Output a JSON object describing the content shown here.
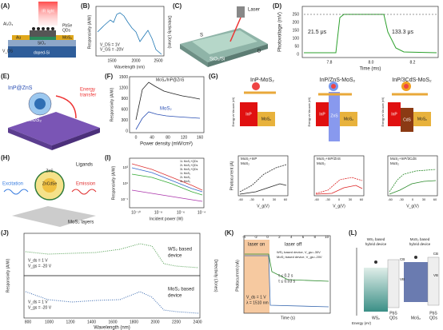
{
  "panels": {
    "A": {
      "label": "(A)",
      "ir": "IR light",
      "al": "Al₂O₃",
      "qd1": "PbSe",
      "qd2": "QDs",
      "mos": "MoS₂",
      "au": "Au",
      "sio": "SiO₂",
      "si": "doped-Si",
      "vds": "V_DS"
    },
    "B": {
      "label": "(B)",
      "ylabel": "Responsivity (A/W)",
      "y2label": "Detectivity (Jones)",
      "xlabel": "Wavelength (nm)",
      "xticks": [
        "1500",
        "2000",
        "2500"
      ],
      "note1": "V_DS = 1V",
      "note2": "V_GS = -20V"
    },
    "C": {
      "label": "(C)",
      "laser": "Laser",
      "s": "S",
      "d": "D",
      "sub": "SiO₂/Si"
    },
    "D": {
      "label": "(D)",
      "ylabel": "Photovoltage (mV)",
      "xlabel": "Time (ms)",
      "yticks": [
        "0",
        "50",
        "100",
        "150",
        "200",
        "250"
      ],
      "xticks": [
        "7.8",
        "8.0",
        "8.2"
      ],
      "rise": "21.5 μs",
      "fall": "133.3 μs"
    },
    "E": {
      "label": "(E)",
      "qd": "InP@ZnS",
      "et1": "Energy",
      "et2": "transfer",
      "mos": "MoS₂"
    },
    "F": {
      "label": "(F)",
      "ylabel": "Responsivity (A/W)",
      "xlabel": "Power density (mW/cm²)",
      "yticks": [
        "0",
        "300",
        "600",
        "900",
        "1200",
        "1500"
      ],
      "xticks": [
        "0",
        "40",
        "80",
        "120",
        "160"
      ],
      "s1": "MoS₂/InP@ZnS",
      "s2": "MoS₂"
    },
    "G": {
      "label": "(G)",
      "titles": [
        "InP-MoS₂",
        "InP/ZnS-MoS₂",
        "InP/3CdS-MoS₂"
      ],
      "elabel": "Energy vs Vacuum (eV)",
      "inp": "InP",
      "mos": "MoS₂",
      "zns": "ZnS",
      "cds": "CdS",
      "ylabel": "Photocurrent (A)",
      "xlabel": "V_g(V)",
      "xticks": [
        "-60",
        "-30",
        "0",
        "30",
        "60"
      ],
      "leg": [
        "MoS₂+InP",
        "MoS₂+InP/ZnS",
        "MoS₂+InP/3CdS"
      ],
      "leg0": "MoS₂"
    },
    "H": {
      "label": "(H)",
      "zns": "ZnS",
      "zncdse": "ZnCdSe",
      "lig": "Ligands",
      "exc": "Excitation",
      "emi": "Emission",
      "mos": "MoS₂ layers"
    },
    "I": {
      "label": "(I)",
      "ylabel": "Responsivity (A/W)",
      "xlabel": "Incident power (W)",
      "xticks": [
        "10⁻¹⁰",
        "10⁻⁸",
        "10⁻⁶",
        "10⁻⁴"
      ],
      "yticks": [
        "10⁻¹",
        "10¹",
        "10³"
      ],
      "leg": [
        "1L MoS₂+QDs",
        "2L MoS₂+QDs",
        "3L MoS₂+QDs",
        "1L MoS₂",
        "2L MoS₂",
        "3L MoS₂"
      ]
    },
    "J": {
      "label": "(J)",
      "ylabel": "Responsivity (A/W)",
      "y2label": "Detectivity (Jones)",
      "xlabel": "Wavelength (nm)",
      "xticks": [
        "800",
        "1000",
        "1200",
        "1400",
        "1600",
        "1800",
        "2000",
        "2200",
        "2400"
      ],
      "ws1": "WS₂ based",
      "ws2": "device",
      "mo1": "MoS₂ based",
      "mo2": "device",
      "vds": "V_ds = 1 V",
      "vgs1": "V_gs = -20 V",
      "vgs2": "V_gs = -20 V"
    },
    "K": {
      "label": "(K)",
      "on": "laser on",
      "off": "laser off",
      "leg1": "WS₂ based device, V_gs=-30V",
      "leg2": "MoS₂ based device, V_gs=-20V",
      "t1": "τ ≤ 0.2 s",
      "t2": "τ ≤ 0.03 s",
      "vds": "V_ds = 1 V",
      "lam": "λ = 1510 nm",
      "xlabel": "Time (s)",
      "ylabel": "Photocurrent (nA)",
      "xticks": [
        "-4",
        "-2",
        "0",
        "2",
        "4",
        "6",
        "8",
        "10"
      ]
    },
    "L": {
      "label": "(L)",
      "ws1": "WS₂ based",
      "ws2": "hybrid device",
      "mo1": "MoS₂ based",
      "mo2": "hybrid device",
      "cb": "CB",
      "vb": "VB",
      "pbs1": "PbS",
      "pbs2": "QDs",
      "ws": "WS₂",
      "mo": "MoS₂",
      "en": "Energy (eV)"
    }
  }
}
